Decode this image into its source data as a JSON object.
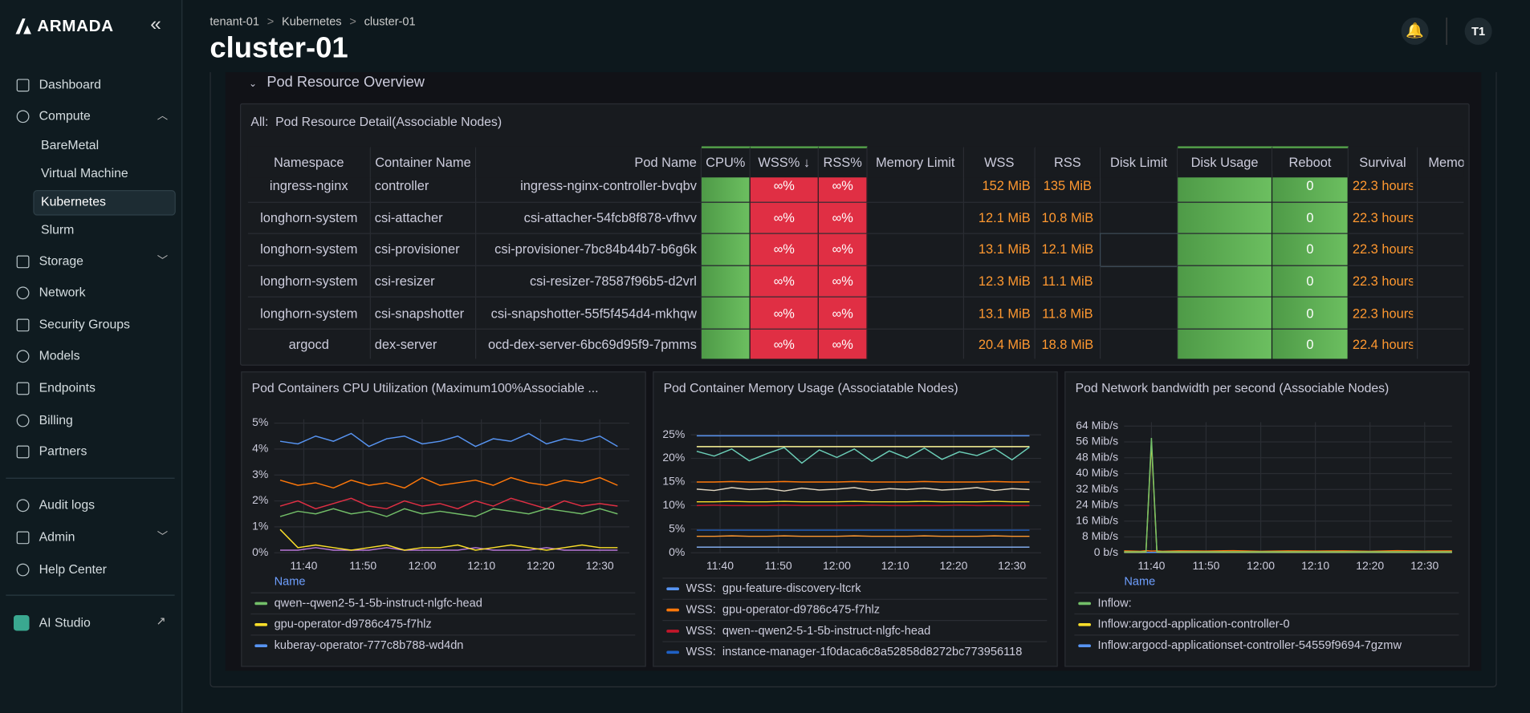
{
  "brand": "ARMADA",
  "nav": [
    "Dashboard",
    "Compute",
    "BareMetal",
    "Virtual Machine",
    "Kubernetes",
    "Slurm",
    "Storage",
    "Network",
    "Security Groups",
    "Models",
    "Endpoints",
    "Billing",
    "Partners",
    "Audit logs",
    "Admin",
    "Help Center",
    "AI Studio"
  ],
  "header": {
    "breadcrumb": [
      "tenant-01",
      "Kubernetes",
      "cluster-01"
    ],
    "title": "cluster-01",
    "avatar": "T1"
  },
  "section": "Pod Resource Overview",
  "table": {
    "title": "All:  Pod Resource Detail(Associable Nodes)",
    "columns": [
      "Namespace",
      "Container Name",
      "Pod Name",
      "CPU%",
      "WSS%",
      "RSS%",
      "Memory Limit",
      "WSS",
      "RSS",
      "Disk Limit",
      "Disk Usage",
      "Reboot",
      "Survival",
      "Memo"
    ],
    "rows": [
      {
        "namespace": "ingress-nginx",
        "container": "controller",
        "pod": "ingress-nginx-controller-bvqbv",
        "wss_pct": "∞%",
        "rss_pct": "∞%",
        "wss": "152 MiB",
        "rss": "135 MiB",
        "reboot": 0,
        "survival": "22.3 hours"
      },
      {
        "namespace": "longhorn-system",
        "container": "csi-attacher",
        "pod": "csi-attacher-54fcb8f878-vfhvv",
        "wss_pct": "∞%",
        "rss_pct": "∞%",
        "wss": "12.1 MiB",
        "rss": "10.8 MiB",
        "reboot": 0,
        "survival": "22.3 hours"
      },
      {
        "namespace": "longhorn-system",
        "container": "csi-provisioner",
        "pod": "csi-provisioner-7bc84b44b7-b6g6k",
        "wss_pct": "∞%",
        "rss_pct": "∞%",
        "wss": "13.1 MiB",
        "rss": "12.1 MiB",
        "reboot": 0,
        "survival": "22.3 hours"
      },
      {
        "namespace": "longhorn-system",
        "container": "csi-resizer",
        "pod": "csi-resizer-78587f96b5-d2vrl",
        "wss_pct": "∞%",
        "rss_pct": "∞%",
        "wss": "12.3 MiB",
        "rss": "11.1 MiB",
        "reboot": 0,
        "survival": "22.3 hours"
      },
      {
        "namespace": "longhorn-system",
        "container": "csi-snapshotter",
        "pod": "csi-snapshotter-55f5f454d4-mkhqw",
        "wss_pct": "∞%",
        "rss_pct": "∞%",
        "wss": "13.1 MiB",
        "rss": "11.8 MiB",
        "reboot": 0,
        "survival": "22.3 hours"
      },
      {
        "namespace": "argocd",
        "container": "dex-server",
        "pod": "ocd-dex-server-6bc69d95f9-7pmms",
        "wss_pct": "∞%",
        "rss_pct": "∞%",
        "wss": "20.4 MiB",
        "rss": "18.8 MiB",
        "reboot": 0,
        "survival": "22.4 hours"
      }
    ]
  },
  "chart_data": [
    {
      "type": "line",
      "title": "Pod Containers CPU Utilization (Maximum100%Associable ...",
      "legend_title": "Name",
      "x": [
        "11:36",
        "11:39",
        "11:42",
        "11:45",
        "11:48",
        "11:51",
        "11:54",
        "11:57",
        "12:00",
        "12:03",
        "12:06",
        "12:09",
        "12:12",
        "12:15",
        "12:18",
        "12:21",
        "12:24",
        "12:27",
        "12:30",
        "12:33"
      ],
      "xlim": [
        "11:35",
        "12:35"
      ],
      "xticks": [
        "11:40",
        "11:50",
        "12:00",
        "12:10",
        "12:20",
        "12:30"
      ],
      "ylim": [
        0,
        5
      ],
      "yticks": [
        {
          "value": 0,
          "label": "0%"
        },
        {
          "value": 1,
          "label": "1%"
        },
        {
          "value": 2,
          "label": "2%"
        },
        {
          "value": 3,
          "label": "3%"
        },
        {
          "value": 4,
          "label": "4%"
        },
        {
          "value": 5,
          "label": "5%"
        }
      ],
      "grid": true,
      "series": [
        {
          "name": "qwen--qwen2-5-1-5b-instruct-nlgfc-head",
          "color": "#73bf69",
          "values": [
            1.4,
            1.6,
            1.5,
            1.7,
            1.5,
            1.6,
            1.4,
            1.7,
            1.5,
            1.6,
            1.5,
            1.4,
            1.7,
            1.6,
            1.5,
            1.7,
            1.6,
            1.5,
            1.7,
            1.5
          ]
        },
        {
          "name": "gpu-operator-d9786c475-f7hlz",
          "color": "#fade2a",
          "values": [
            0.9,
            0.2,
            0.3,
            0.2,
            0.1,
            0.2,
            0.3,
            0.1,
            0.2,
            0.2,
            0.3,
            0.1,
            0.2,
            0.3,
            0.2,
            0.1,
            0.2,
            0.3,
            0.2,
            0.2
          ]
        },
        {
          "name": "kuberay-operator-777c8b788-wd4dn",
          "color": "#5794f2",
          "values": [
            4.3,
            4.2,
            4.5,
            4.3,
            4.6,
            4.1,
            4.4,
            4.5,
            4.2,
            4.3,
            4.5,
            4.1,
            4.4,
            4.3,
            4.6,
            4.2,
            4.4,
            4.3,
            4.5,
            4.1
          ]
        },
        {
          "color": "#ff780a",
          "values": [
            2.8,
            2.6,
            2.7,
            2.5,
            2.8,
            2.6,
            2.7,
            2.5,
            2.9,
            2.6,
            2.7,
            2.8,
            2.6,
            2.9,
            2.7,
            2.6,
            2.8,
            2.7,
            2.9,
            2.6
          ]
        },
        {
          "color": "#e02f44",
          "values": [
            1.8,
            2.0,
            1.7,
            1.9,
            2.1,
            1.8,
            1.7,
            2.0,
            1.8,
            1.9,
            1.7,
            2.0,
            1.8,
            2.1,
            1.9,
            1.7,
            2.0,
            1.8,
            1.9,
            1.8
          ]
        },
        {
          "color": "#b877d9",
          "values": [
            0.1,
            0.1,
            0.2,
            0.1,
            0.1,
            0.1,
            0.2,
            0.1,
            0.1,
            0.1,
            0.1,
            0.2,
            0.1,
            0.1,
            0.1,
            0.2,
            0.1,
            0.1,
            0.1,
            0.1
          ]
        }
      ]
    },
    {
      "type": "line",
      "title": "Pod Container Memory Usage (Associatable Nodes)",
      "x": [
        "11:36",
        "11:39",
        "11:42",
        "11:45",
        "11:48",
        "11:51",
        "11:54",
        "11:57",
        "12:00",
        "12:03",
        "12:06",
        "12:09",
        "12:12",
        "12:15",
        "12:18",
        "12:21",
        "12:24",
        "12:27",
        "12:30",
        "12:33"
      ],
      "xlim": [
        "11:35",
        "12:35"
      ],
      "xticks": [
        "11:40",
        "11:50",
        "12:00",
        "12:10",
        "12:20",
        "12:30"
      ],
      "ylim": [
        0,
        25
      ],
      "yticks": [
        {
          "value": 0,
          "label": "0%"
        },
        {
          "value": 5,
          "label": "5%"
        },
        {
          "value": 10,
          "label": "10%"
        },
        {
          "value": 15,
          "label": "15%"
        },
        {
          "value": 20,
          "label": "20%"
        },
        {
          "value": 25,
          "label": "25%"
        }
      ],
      "grid": true,
      "series": [
        {
          "name": "WSS:  gpu-feature-discovery-ltcrk",
          "color": "#5794f2",
          "values": [
            24.8,
            24.8,
            24.8,
            24.8,
            24.8,
            24.8,
            24.8,
            24.8,
            24.8,
            24.8,
            24.8,
            24.8,
            24.8,
            24.8,
            24.8,
            24.8,
            24.8,
            24.8,
            24.8,
            24.8
          ]
        },
        {
          "name": "WSS:  gpu-operator-d9786c475-f7hlz",
          "color": "#ff780a",
          "values": [
            15,
            15,
            15.1,
            15,
            15,
            15.1,
            15,
            15,
            15,
            15.1,
            15,
            15,
            15,
            15.1,
            15,
            15,
            15,
            15.1,
            15,
            15
          ]
        },
        {
          "name": "WSS:  qwen--qwen2-5-1-5b-instruct-nlgfc-head",
          "color": "#c4162a",
          "values": [
            10,
            10.1,
            10,
            10,
            10,
            10.1,
            10,
            10,
            10,
            10,
            10.1,
            10,
            10,
            10,
            10,
            10.1,
            10,
            10,
            10,
            10
          ]
        },
        {
          "name": "WSS:  instance-manager-1f0daca6c8a52858d8272bc773956118",
          "color": "#1f60c4",
          "values": [
            4.8,
            4.8,
            4.8,
            4.8,
            4.8,
            4.8,
            4.8,
            4.8,
            4.8,
            4.8,
            4.8,
            4.8,
            4.8,
            4.8,
            4.8,
            4.8,
            4.8,
            4.8,
            4.8,
            4.8
          ]
        },
        {
          "color": "#6ccfb8",
          "values": [
            21.5,
            20.5,
            22,
            19.5,
            21,
            22.3,
            19,
            21.8,
            20.2,
            22,
            19.4,
            21.6,
            20.1,
            22.2,
            19.8,
            21.4,
            20.6,
            22.1,
            19.7,
            22.4
          ]
        },
        {
          "color": "#fff899",
          "values": [
            22.5,
            22.5,
            22.5,
            22.5,
            22.5,
            22.5,
            22.5,
            22.5,
            22.5,
            22.5,
            22.5,
            22.5,
            22.5,
            22.5,
            22.5,
            22.5,
            22.5,
            22.5,
            22.5,
            22.5
          ]
        },
        {
          "color": "#e0d6c0",
          "values": [
            13.5,
            13.2,
            13.8,
            13.4,
            13.6,
            13.1,
            13.7,
            13.3,
            13.5,
            13.8,
            13.2,
            13.6,
            13.4,
            13.7,
            13.3,
            13.5,
            13.8,
            13.2,
            13.6,
            13.4
          ]
        },
        {
          "color": "#fade2a",
          "values": [
            10.8,
            10.8,
            10.9,
            10.8,
            10.8,
            10.9,
            10.8,
            10.8,
            10.8,
            10.9,
            10.8,
            10.8,
            10.8,
            10.9,
            10.8,
            10.8,
            10.8,
            10.9,
            10.8,
            10.8
          ]
        },
        {
          "color": "#ff9830",
          "values": [
            3.5,
            3.5,
            3.6,
            3.5,
            3.5,
            3.6,
            3.5,
            3.5,
            3.5,
            3.6,
            3.5,
            3.5,
            3.5,
            3.6,
            3.5,
            3.5,
            3.5,
            3.6,
            3.5,
            3.5
          ]
        },
        {
          "color": "#8ab8ff",
          "values": [
            1.2,
            1.2,
            1.2,
            1.2,
            1.2,
            1.2,
            1.2,
            1.2,
            1.2,
            1.2,
            1.2,
            1.2,
            1.2,
            1.2,
            1.2,
            1.2,
            1.2,
            1.2,
            1.2,
            1.2
          ]
        }
      ]
    },
    {
      "type": "line",
      "title": "Pod Network bandwidth per second (Associable Nodes)",
      "legend_title": "Name",
      "x": [
        "11:35",
        "11:38",
        "11:39",
        "11:40",
        "11:41",
        "11:42",
        "11:45",
        "11:50",
        "11:55",
        "12:00",
        "12:05",
        "12:10",
        "12:15",
        "12:20",
        "12:25",
        "12:30",
        "12:35"
      ],
      "xlim": [
        "11:35",
        "12:35"
      ],
      "xticks": [
        "11:40",
        "11:50",
        "12:00",
        "12:10",
        "12:20",
        "12:30"
      ],
      "ylim": [
        0,
        64
      ],
      "yticks": [
        {
          "value": 0,
          "label": "0 b/s"
        },
        {
          "value": 8,
          "label": "8 Mib/s"
        },
        {
          "value": 16,
          "label": "16 Mib/s"
        },
        {
          "value": 24,
          "label": "24 Mib/s"
        },
        {
          "value": 32,
          "label": "32 Mib/s"
        },
        {
          "value": 40,
          "label": "40 Mib/s"
        },
        {
          "value": 48,
          "label": "48 Mib/s"
        },
        {
          "value": 56,
          "label": "56 Mib/s"
        },
        {
          "value": 64,
          "label": "64 Mib/s"
        }
      ],
      "grid": true,
      "series": [
        {
          "name": "Inflow:",
          "color": "#73bf69",
          "values": [
            0.5,
            0.5,
            0.6,
            58,
            0.6,
            0.5,
            0.5,
            0.5,
            0.5,
            0.5,
            0.5,
            0.5,
            0.5,
            0.5,
            0.5,
            0.5,
            0.5
          ]
        },
        {
          "name": "Inflow:argocd-application-controller-0",
          "color": "#fade2a",
          "values": [
            0.3,
            0.3,
            0.4,
            56,
            0.4,
            0.3,
            0.3,
            0.3,
            0.3,
            0.3,
            0.3,
            0.3,
            0.3,
            0.3,
            0.3,
            0.3,
            0.3
          ]
        },
        {
          "name": "Inflow:argocd-applicationset-controller-54559f9694-7gzmw",
          "color": "#5794f2",
          "values": [
            0.2,
            0.2,
            0.2,
            0.2,
            0.2,
            0.2,
            0.2,
            0.2,
            0.2,
            0.2,
            0.2,
            0.2,
            0.2,
            0.2,
            0.2,
            0.2,
            0.2
          ]
        },
        {
          "color": "#ff780a",
          "values": [
            1,
            0.8,
            1.1,
            0.9,
            1,
            0.8,
            1,
            0.9,
            1.1,
            0.8,
            1,
            0.9,
            1,
            0.8,
            1.1,
            0.9,
            1
          ]
        }
      ]
    }
  ]
}
